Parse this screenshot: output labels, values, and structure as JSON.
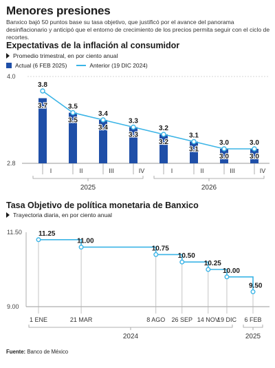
{
  "header": {
    "title": "Menores presiones",
    "subtitle": "Banxico bajó 50 puntos base su tasa objetivo, que justificó por el avance del panorama desinflacionario y anticipó que el entorno de crecimiento de los precios permita seguir con el ciclo de recortes."
  },
  "colors": {
    "bar": "#1f4fa8",
    "line": "#3ab4e6",
    "axis": "#999999"
  },
  "chart_data": [
    {
      "type": "bar",
      "title": "Expectativas de la inflación al consumidor",
      "subtitle": "Promedio trimestral, en por ciento anual",
      "categories": [
        "I",
        "II",
        "III",
        "IV",
        "I",
        "II",
        "III",
        "IV"
      ],
      "year_groups": [
        {
          "label": "2025",
          "start": 0,
          "end": 3
        },
        {
          "label": "2026",
          "start": 4,
          "end": 7
        }
      ],
      "ylim": [
        2.8,
        4.0
      ],
      "ytick_labels": [
        "4.0",
        "2.8"
      ],
      "series": [
        {
          "name": "Actual (6 FEB 2025)",
          "values": [
            3.7,
            3.5,
            3.4,
            3.3,
            3.2,
            3.1,
            3.0,
            3.0
          ],
          "labels": [
            "3.7",
            "3.5",
            "3.4",
            "3.3",
            "3.2",
            "3.1",
            "3.0",
            "3.0"
          ]
        },
        {
          "name": "Anterior (19 DIC 2024)",
          "values": [
            3.8,
            3.5,
            3.4,
            3.3,
            3.2,
            3.1,
            3.0,
            3.0
          ],
          "labels": [
            "3.8",
            "3.5",
            "3.4",
            "3.3",
            "3.2",
            "3.1",
            "3.0",
            "3.0"
          ]
        }
      ]
    },
    {
      "type": "line",
      "title": "Tasa Objetivo de política monetaria de Banxico",
      "subtitle": "Trayectoria diaria, en por ciento anual",
      "ylim": [
        9.0,
        11.5
      ],
      "ytick_labels": [
        "11.50",
        "9.00"
      ],
      "x": [
        "2024-01-01",
        "2024-03-21",
        "2024-08-08",
        "2024-09-26",
        "2024-11-14",
        "2024-12-19",
        "2025-02-06"
      ],
      "x_labels": [
        "1 ENE",
        "21 MAR",
        "8 AGO",
        "26 SEP",
        "14 NOV",
        "19 DIC",
        "6 FEB"
      ],
      "values": [
        11.25,
        11.0,
        10.75,
        10.5,
        10.25,
        10.0,
        9.5
      ],
      "value_labels": [
        "11.25",
        "11.00",
        "10.75",
        "10.50",
        "10.25",
        "10.00",
        "9.50"
      ],
      "year_labels": [
        "2024",
        "2025"
      ]
    }
  ],
  "source": {
    "label": "Fuente:",
    "text": "Banco de México"
  }
}
